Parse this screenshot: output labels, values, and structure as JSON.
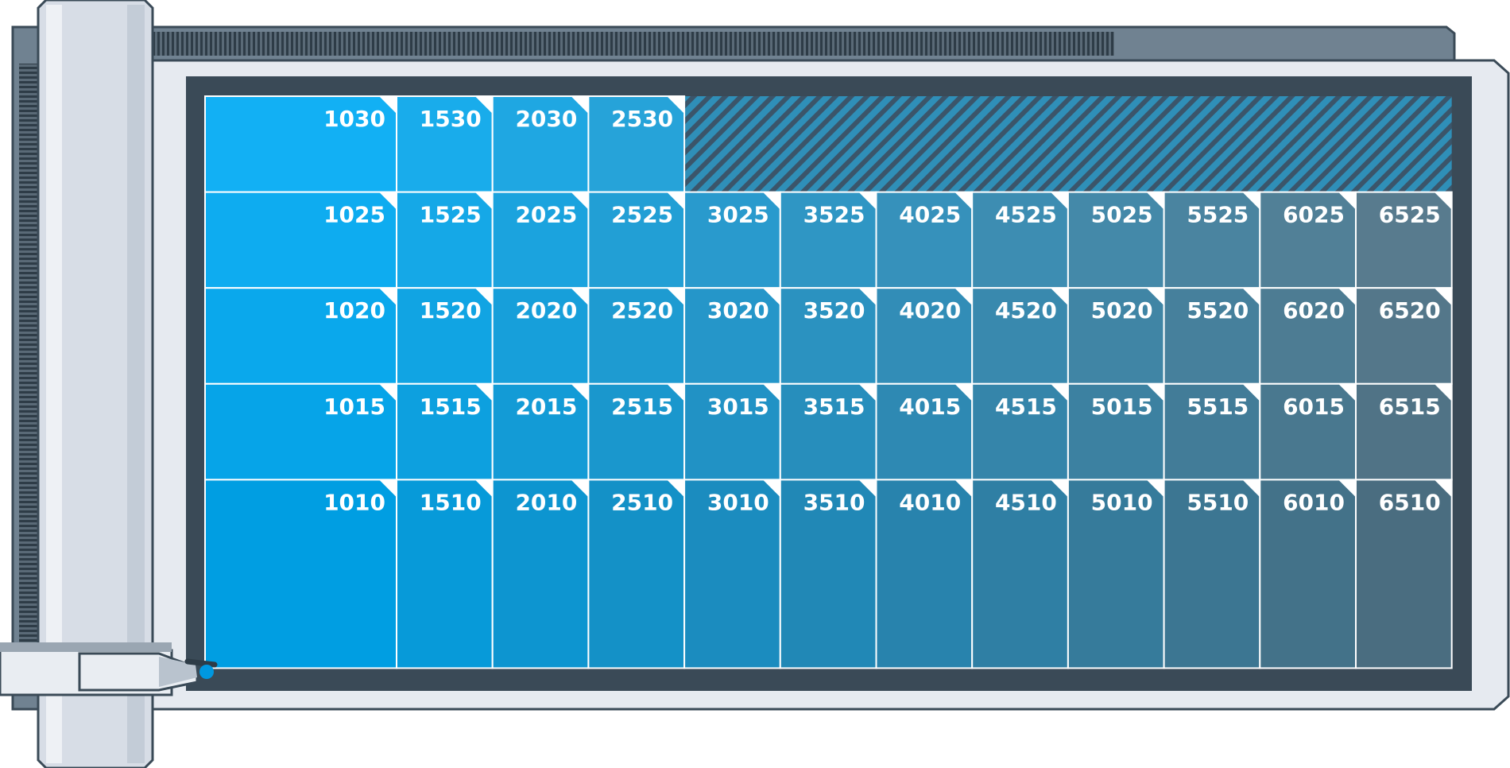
{
  "colors": {
    "frame_dark": "#3a4a57",
    "frame_light": "#e6eaf0",
    "top_bar": "#708291",
    "teeth": "#3c4b57",
    "rail": "#d2d9e2",
    "pen_body": "#d7dde6",
    "pen_tip": "#0098e0",
    "hatch": "#3b556a",
    "start_color": "#009ee2",
    "end_color": "#506978"
  },
  "grid": {
    "columns": [
      10,
      15,
      20,
      25,
      30,
      35,
      40,
      45,
      50,
      55,
      60,
      65
    ],
    "rows": [
      30,
      25,
      20,
      15,
      10
    ],
    "missing_cells": [
      {
        "column": 30,
        "row": 30
      },
      {
        "column": 35,
        "row": 30
      },
      {
        "column": 40,
        "row": 30
      },
      {
        "column": 45,
        "row": 30
      },
      {
        "column": 50,
        "row": 30
      },
      {
        "column": 55,
        "row": 30
      },
      {
        "column": 60,
        "row": 30
      },
      {
        "column": 65,
        "row": 30
      }
    ],
    "labels": [
      [
        "1030",
        "1530",
        "2030",
        "2530",
        "",
        "",
        "",
        "",
        "",
        "",
        "",
        ""
      ],
      [
        "1025",
        "1525",
        "2025",
        "2525",
        "3025",
        "3525",
        "4025",
        "4525",
        "5025",
        "5525",
        "6025",
        "6525"
      ],
      [
        "1020",
        "1520",
        "2020",
        "2520",
        "3020",
        "3520",
        "4020",
        "4520",
        "5020",
        "5520",
        "6020",
        "6520"
      ],
      [
        "1015",
        "1515",
        "2015",
        "2515",
        "3015",
        "3515",
        "4015",
        "4515",
        "5015",
        "5515",
        "6015",
        "6515"
      ],
      [
        "1010",
        "1510",
        "2010",
        "2510",
        "3010",
        "3510",
        "4010",
        "4510",
        "5010",
        "5510",
        "6010",
        "6510"
      ]
    ]
  }
}
